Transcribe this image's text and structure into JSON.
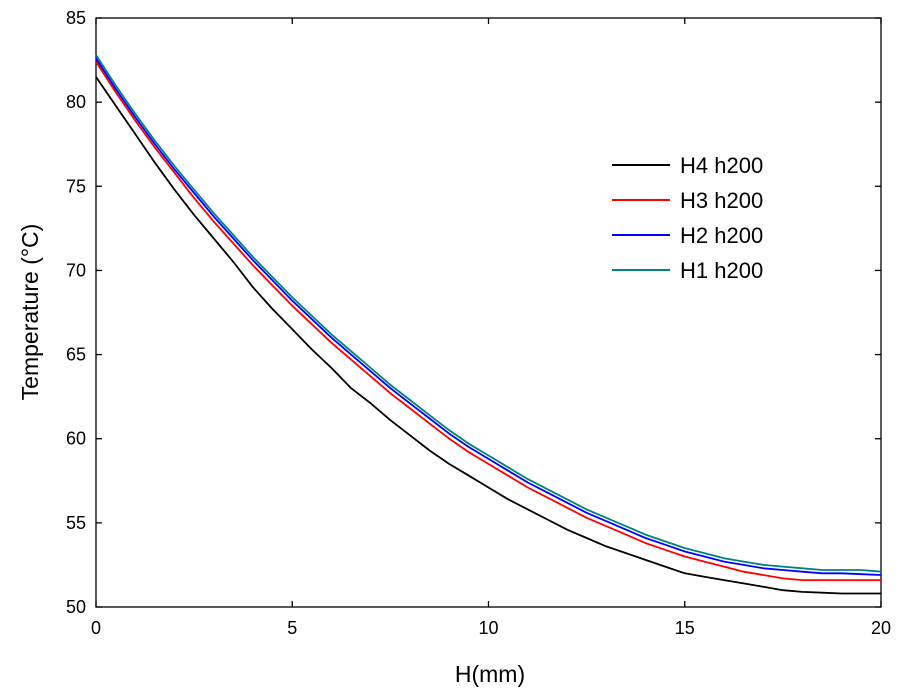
{
  "chart_data": {
    "type": "line",
    "title": "",
    "xlabel": "H(mm)",
    "ylabel": "Temperature (°C)",
    "xlim": [
      0,
      20
    ],
    "ylim": [
      50,
      85
    ],
    "xticks": [
      0,
      5,
      10,
      15,
      20
    ],
    "yticks": [
      50,
      55,
      60,
      65,
      70,
      75,
      80,
      85
    ],
    "grid": false,
    "legend_position": "right",
    "x": [
      0,
      0.5,
      1,
      1.5,
      2,
      2.5,
      3,
      3.5,
      4,
      4.5,
      5,
      5.5,
      6,
      6.5,
      7,
      7.5,
      8,
      8.5,
      9,
      9.5,
      10,
      10.5,
      11,
      11.5,
      12,
      12.5,
      13,
      13.5,
      14,
      14.5,
      15,
      15.5,
      16,
      16.5,
      17,
      17.5,
      18,
      18.5,
      19,
      19.5,
      20
    ],
    "series": [
      {
        "name": "H4 h200",
        "color": "#000000",
        "values": [
          81.5,
          79.8,
          78.1,
          76.4,
          74.8,
          73.3,
          71.9,
          70.5,
          69.0,
          67.7,
          66.5,
          65.3,
          64.2,
          63.0,
          62.1,
          61.1,
          60.2,
          59.3,
          58.5,
          57.8,
          57.1,
          56.4,
          55.8,
          55.2,
          54.6,
          54.1,
          53.6,
          53.2,
          52.8,
          52.4,
          52.0,
          51.8,
          51.6,
          51.4,
          51.2,
          51.0,
          50.9,
          50.85,
          50.8,
          50.8,
          50.8
        ]
      },
      {
        "name": "H3 h200",
        "color": "#ff0000",
        "values": [
          82.4,
          80.6,
          78.9,
          77.3,
          75.8,
          74.3,
          72.9,
          71.6,
          70.3,
          69.1,
          67.9,
          66.8,
          65.7,
          64.7,
          63.7,
          62.7,
          61.8,
          60.9,
          60.0,
          59.2,
          58.5,
          57.8,
          57.1,
          56.5,
          55.9,
          55.3,
          54.8,
          54.3,
          53.8,
          53.4,
          53.0,
          52.7,
          52.4,
          52.1,
          51.9,
          51.7,
          51.6,
          51.6,
          51.6,
          51.6,
          51.6
        ]
      },
      {
        "name": "H2 h200",
        "color": "#0000ff",
        "values": [
          82.6,
          80.8,
          79.1,
          77.5,
          76.0,
          74.6,
          73.2,
          71.9,
          70.6,
          69.4,
          68.2,
          67.1,
          66.0,
          65.0,
          64.0,
          63.0,
          62.1,
          61.2,
          60.3,
          59.5,
          58.8,
          58.1,
          57.4,
          56.8,
          56.2,
          55.6,
          55.1,
          54.6,
          54.1,
          53.7,
          53.3,
          53.0,
          52.7,
          52.5,
          52.3,
          52.2,
          52.1,
          52.0,
          52.0,
          51.95,
          51.9
        ]
      },
      {
        "name": "H1 h200",
        "color": "#008080",
        "values": [
          82.8,
          81.0,
          79.3,
          77.7,
          76.2,
          74.8,
          73.4,
          72.1,
          70.8,
          69.6,
          68.4,
          67.3,
          66.2,
          65.2,
          64.2,
          63.2,
          62.3,
          61.4,
          60.5,
          59.7,
          59.0,
          58.3,
          57.6,
          57.0,
          56.4,
          55.8,
          55.3,
          54.8,
          54.3,
          53.9,
          53.5,
          53.2,
          52.9,
          52.7,
          52.5,
          52.4,
          52.3,
          52.2,
          52.2,
          52.2,
          52.1
        ]
      }
    ]
  }
}
